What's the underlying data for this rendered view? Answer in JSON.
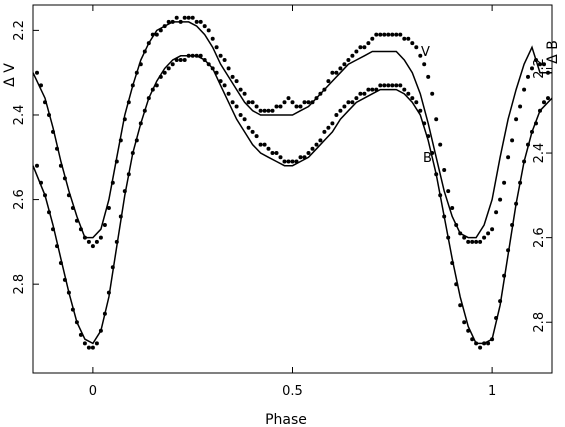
{
  "chart_data": {
    "type": "scatter",
    "xlabel": "Phase",
    "ylabel_left": "Δ V",
    "ylabel_right": "Δ B",
    "xlim": [
      -0.15,
      1.15
    ],
    "ylim_left": [
      2.14,
      3.01
    ],
    "ylim_left_inverted": true,
    "ylim_right": [
      2.05,
      2.92
    ],
    "ylim_right_inverted": true,
    "x_ticks": [
      {
        "value": 0,
        "label": "0"
      },
      {
        "value": 0.5,
        "label": "0.5"
      },
      {
        "value": 1,
        "label": "1"
      }
    ],
    "y_ticks_left": [
      {
        "value": 2.2,
        "label": "2.2"
      },
      {
        "value": 2.4,
        "label": "2.4"
      },
      {
        "value": 2.6,
        "label": "2.6"
      },
      {
        "value": 2.8,
        "label": "2.8"
      }
    ],
    "y_ticks_right": [
      {
        "value": 2.2,
        "label": "2.2"
      },
      {
        "value": 2.4,
        "label": "2.4"
      },
      {
        "value": 2.6,
        "label": "2.6"
      },
      {
        "value": 2.8,
        "label": "2.8"
      }
    ],
    "grid": false,
    "series": [
      {
        "name": "V",
        "axis": "left",
        "model_curve": {
          "x": [
            -0.15,
            -0.12,
            -0.1,
            -0.08,
            -0.06,
            -0.04,
            -0.02,
            0.0,
            0.02,
            0.04,
            0.06,
            0.08,
            0.1,
            0.12,
            0.14,
            0.16,
            0.18,
            0.2,
            0.22,
            0.24,
            0.26,
            0.28,
            0.3,
            0.32,
            0.34,
            0.36,
            0.38,
            0.4,
            0.42,
            0.44,
            0.46,
            0.48,
            0.5,
            0.52,
            0.54,
            0.56,
            0.58,
            0.6,
            0.62,
            0.64,
            0.66,
            0.68,
            0.7,
            0.72,
            0.74,
            0.76,
            0.78,
            0.8,
            0.82,
            0.84,
            0.86,
            0.88,
            0.9,
            0.92,
            0.94,
            0.96,
            0.98,
            1.0,
            1.02,
            1.04,
            1.06,
            1.08,
            1.1,
            1.12,
            1.15
          ],
          "y": [
            2.3,
            2.36,
            2.43,
            2.51,
            2.58,
            2.64,
            2.69,
            2.69,
            2.67,
            2.6,
            2.5,
            2.4,
            2.33,
            2.27,
            2.23,
            2.2,
            2.19,
            2.18,
            2.18,
            2.18,
            2.19,
            2.21,
            2.24,
            2.28,
            2.31,
            2.34,
            2.37,
            2.39,
            2.4,
            2.4,
            2.4,
            2.4,
            2.4,
            2.39,
            2.38,
            2.36,
            2.34,
            2.32,
            2.3,
            2.28,
            2.27,
            2.26,
            2.25,
            2.25,
            2.25,
            2.25,
            2.27,
            2.3,
            2.35,
            2.42,
            2.5,
            2.58,
            2.64,
            2.68,
            2.69,
            2.69,
            2.66,
            2.6,
            2.5,
            2.41,
            2.34,
            2.28,
            2.24,
            2.3,
            2.3
          ]
        },
        "observations": {
          "x": [
            -0.14,
            -0.13,
            -0.12,
            -0.11,
            -0.1,
            -0.09,
            -0.08,
            -0.07,
            -0.06,
            -0.05,
            -0.04,
            -0.03,
            -0.02,
            -0.01,
            0.0,
            0.01,
            0.02,
            0.03,
            0.04,
            0.05,
            0.06,
            0.07,
            0.08,
            0.09,
            0.1,
            0.11,
            0.12,
            0.13,
            0.14,
            0.15,
            0.16,
            0.17,
            0.18,
            0.19,
            0.2,
            0.21,
            0.22,
            0.23,
            0.24,
            0.25,
            0.26,
            0.27,
            0.28,
            0.29,
            0.3,
            0.31,
            0.32,
            0.33,
            0.34,
            0.35,
            0.36,
            0.37,
            0.38,
            0.39,
            0.4,
            0.41,
            0.42,
            0.43,
            0.44,
            0.45,
            0.46,
            0.47,
            0.48,
            0.49,
            0.5,
            0.51,
            0.52,
            0.53,
            0.54,
            0.55,
            0.56,
            0.57,
            0.58,
            0.59,
            0.6,
            0.61,
            0.62,
            0.63,
            0.64,
            0.65,
            0.66,
            0.67,
            0.68,
            0.69,
            0.7,
            0.71,
            0.72,
            0.73,
            0.74,
            0.75,
            0.76,
            0.77,
            0.78,
            0.79,
            0.8,
            0.81,
            0.82,
            0.83,
            0.84,
            0.85,
            0.86,
            0.87,
            0.88,
            0.89,
            0.9,
            0.91,
            0.92,
            0.93,
            0.94,
            0.95,
            0.96,
            0.97,
            0.98,
            0.99,
            1.0,
            1.01,
            1.02,
            1.03,
            1.04,
            1.05,
            1.06,
            1.07,
            1.08,
            1.09,
            1.1,
            1.11,
            1.12,
            1.13,
            1.14
          ],
          "y": [
            2.3,
            2.33,
            2.37,
            2.4,
            2.44,
            2.48,
            2.52,
            2.55,
            2.59,
            2.62,
            2.65,
            2.67,
            2.69,
            2.7,
            2.71,
            2.7,
            2.69,
            2.66,
            2.62,
            2.56,
            2.51,
            2.46,
            2.41,
            2.37,
            2.33,
            2.3,
            2.28,
            2.25,
            2.23,
            2.21,
            2.21,
            2.2,
            2.19,
            2.18,
            2.18,
            2.17,
            2.18,
            2.17,
            2.17,
            2.17,
            2.18,
            2.18,
            2.19,
            2.2,
            2.22,
            2.24,
            2.26,
            2.27,
            2.29,
            2.31,
            2.32,
            2.34,
            2.35,
            2.37,
            2.37,
            2.38,
            2.39,
            2.39,
            2.39,
            2.39,
            2.38,
            2.38,
            2.37,
            2.36,
            2.37,
            2.38,
            2.38,
            2.37,
            2.37,
            2.37,
            2.36,
            2.35,
            2.34,
            2.32,
            2.3,
            2.3,
            2.29,
            2.28,
            2.27,
            2.26,
            2.25,
            2.24,
            2.24,
            2.23,
            2.22,
            2.21,
            2.21,
            2.21,
            2.21,
            2.21,
            2.21,
            2.21,
            2.22,
            2.22,
            2.23,
            2.24,
            2.26,
            2.28,
            2.31,
            2.35,
            2.41,
            2.47,
            2.53,
            2.58,
            2.62,
            2.66,
            2.68,
            2.69,
            2.7,
            2.7,
            2.7,
            2.7,
            2.69,
            2.68,
            2.67,
            2.63,
            2.6,
            2.56,
            2.5,
            2.46,
            2.41,
            2.38,
            2.34,
            2.31,
            2.29,
            2.27,
            2.28,
            2.28,
            2.3
          ]
        }
      },
      {
        "name": "B",
        "axis": "right",
        "model_curve": {
          "x": [
            -0.15,
            -0.12,
            -0.1,
            -0.08,
            -0.06,
            -0.04,
            -0.02,
            0.0,
            0.02,
            0.04,
            0.06,
            0.08,
            0.1,
            0.12,
            0.14,
            0.16,
            0.18,
            0.2,
            0.22,
            0.24,
            0.26,
            0.28,
            0.3,
            0.32,
            0.34,
            0.36,
            0.38,
            0.4,
            0.42,
            0.44,
            0.46,
            0.48,
            0.5,
            0.52,
            0.54,
            0.56,
            0.58,
            0.6,
            0.62,
            0.64,
            0.66,
            0.68,
            0.7,
            0.72,
            0.74,
            0.76,
            0.78,
            0.8,
            0.82,
            0.84,
            0.86,
            0.88,
            0.9,
            0.92,
            0.94,
            0.96,
            0.98,
            1.0,
            1.02,
            1.04,
            1.06,
            1.08,
            1.1,
            1.12,
            1.15
          ],
          "y": [
            2.43,
            2.5,
            2.57,
            2.65,
            2.73,
            2.8,
            2.84,
            2.85,
            2.82,
            2.74,
            2.62,
            2.5,
            2.4,
            2.33,
            2.27,
            2.23,
            2.2,
            2.18,
            2.17,
            2.17,
            2.17,
            2.18,
            2.2,
            2.24,
            2.28,
            2.32,
            2.35,
            2.38,
            2.4,
            2.41,
            2.42,
            2.43,
            2.43,
            2.42,
            2.41,
            2.39,
            2.37,
            2.35,
            2.32,
            2.3,
            2.28,
            2.27,
            2.26,
            2.25,
            2.25,
            2.25,
            2.26,
            2.28,
            2.31,
            2.37,
            2.45,
            2.55,
            2.65,
            2.74,
            2.81,
            2.85,
            2.85,
            2.84,
            2.76,
            2.64,
            2.52,
            2.42,
            2.35,
            2.3,
            2.27
          ]
        },
        "observations": {
          "x": [
            -0.14,
            -0.13,
            -0.12,
            -0.11,
            -0.1,
            -0.09,
            -0.08,
            -0.07,
            -0.06,
            -0.05,
            -0.04,
            -0.03,
            -0.02,
            -0.01,
            0.0,
            0.01,
            0.02,
            0.03,
            0.04,
            0.05,
            0.06,
            0.07,
            0.08,
            0.09,
            0.1,
            0.11,
            0.12,
            0.13,
            0.14,
            0.15,
            0.16,
            0.17,
            0.18,
            0.19,
            0.2,
            0.21,
            0.22,
            0.23,
            0.24,
            0.25,
            0.26,
            0.27,
            0.28,
            0.29,
            0.3,
            0.31,
            0.32,
            0.33,
            0.34,
            0.35,
            0.36,
            0.37,
            0.38,
            0.39,
            0.4,
            0.41,
            0.42,
            0.43,
            0.44,
            0.45,
            0.46,
            0.47,
            0.48,
            0.49,
            0.5,
            0.51,
            0.52,
            0.53,
            0.54,
            0.55,
            0.56,
            0.57,
            0.58,
            0.59,
            0.6,
            0.61,
            0.62,
            0.63,
            0.64,
            0.65,
            0.66,
            0.67,
            0.68,
            0.69,
            0.7,
            0.71,
            0.72,
            0.73,
            0.74,
            0.75,
            0.76,
            0.77,
            0.78,
            0.79,
            0.8,
            0.81,
            0.82,
            0.83,
            0.84,
            0.85,
            0.86,
            0.87,
            0.88,
            0.89,
            0.9,
            0.91,
            0.92,
            0.93,
            0.94,
            0.95,
            0.96,
            0.97,
            0.98,
            0.99,
            1.0,
            1.01,
            1.02,
            1.03,
            1.04,
            1.05,
            1.06,
            1.07,
            1.08,
            1.09,
            1.1,
            1.11,
            1.12,
            1.13,
            1.14
          ],
          "y": [
            2.43,
            2.47,
            2.5,
            2.54,
            2.58,
            2.62,
            2.66,
            2.7,
            2.73,
            2.77,
            2.8,
            2.83,
            2.85,
            2.86,
            2.86,
            2.85,
            2.82,
            2.78,
            2.73,
            2.67,
            2.61,
            2.55,
            2.49,
            2.45,
            2.4,
            2.37,
            2.33,
            2.3,
            2.27,
            2.25,
            2.24,
            2.22,
            2.21,
            2.2,
            2.19,
            2.18,
            2.18,
            2.18,
            2.17,
            2.17,
            2.17,
            2.17,
            2.18,
            2.19,
            2.2,
            2.21,
            2.23,
            2.24,
            2.26,
            2.28,
            2.29,
            2.31,
            2.32,
            2.34,
            2.35,
            2.36,
            2.38,
            2.38,
            2.39,
            2.4,
            2.4,
            2.41,
            2.42,
            2.42,
            2.42,
            2.42,
            2.41,
            2.41,
            2.4,
            2.39,
            2.38,
            2.37,
            2.35,
            2.34,
            2.33,
            2.31,
            2.3,
            2.29,
            2.28,
            2.28,
            2.27,
            2.26,
            2.26,
            2.25,
            2.25,
            2.25,
            2.24,
            2.24,
            2.24,
            2.24,
            2.24,
            2.24,
            2.25,
            2.26,
            2.27,
            2.28,
            2.3,
            2.33,
            2.36,
            2.4,
            2.45,
            2.5,
            2.55,
            2.6,
            2.66,
            2.71,
            2.76,
            2.8,
            2.82,
            2.84,
            2.85,
            2.86,
            2.85,
            2.85,
            2.84,
            2.79,
            2.75,
            2.69,
            2.63,
            2.57,
            2.52,
            2.47,
            2.42,
            2.38,
            2.35,
            2.33,
            2.3,
            2.28,
            2.27
          ]
        }
      }
    ]
  }
}
